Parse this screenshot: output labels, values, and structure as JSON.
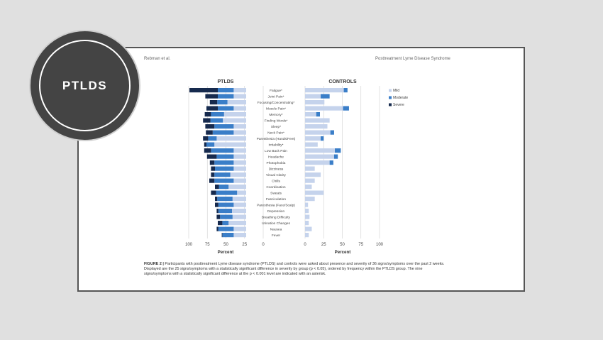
{
  "badge": {
    "label": "PTLDS"
  },
  "header": {
    "left": "Rebman et al.",
    "right": "Posttreatment Lyme Disease Syndrome"
  },
  "caption": {
    "figure_label": "FIGURE 2 |",
    "text": " Participants with posttreatment Lyme disease syndrome (PTLDS) and controls were asked about presence and severity of 36 signs/symptoms over the past 2 weeks. Displayed are the 25 signs/symptoms with a statistically significant difference in severity by group (p < 0.05), ordered by frequency within the PTLDS group. The nine signs/symptoms with a statistically significant difference at the p < 0.001 level are indicated with an asterisk."
  },
  "colors": {
    "mild": "#c5d3ec",
    "moderate": "#3a7ec8",
    "severe": "#162a4e"
  },
  "chart_data": [
    {
      "type": "bar",
      "title": "PTLDS",
      "xlabel": "Percent",
      "xlim": [
        0,
        100
      ],
      "x_reversed": true,
      "ticks": [
        100,
        75,
        50,
        25,
        0
      ],
      "categories": [
        "Fatigue*",
        "Joint Pain*",
        "Focusing/Concentrating*",
        "Muscle Pain*",
        "Memory*",
        "Finding Words*",
        "Sleep*",
        "Neck Pain*",
        "Paresthesia (Hands/Feet)",
        "Irritability*",
        "Low Back Pain",
        "Headache",
        "Photophobia",
        "Dizziness",
        "Visual Clarity",
        "Chills",
        "Coordination",
        "Sweats",
        "Fasciculation",
        "Paresthesia (Face/Scalp)",
        "Depression",
        "Breathing Difficulty",
        "Urination Changes",
        "Nausea",
        "Fever"
      ],
      "series": [
        {
          "name": "Mild",
          "values": [
            22,
            22,
            33,
            22,
            39,
            41,
            22,
            22,
            52,
            56,
            22,
            22,
            22,
            22,
            28,
            22,
            31,
            16,
            24,
            22,
            25,
            24,
            31,
            22,
            22
          ]
        },
        {
          "name": "Moderate",
          "values": [
            28,
            28,
            18,
            28,
            23,
            22,
            34,
            37,
            15,
            14,
            40,
            30,
            34,
            33,
            28,
            34,
            17,
            37,
            27,
            27,
            24,
            22,
            11,
            27,
            20
          ]
        },
        {
          "name": "Severe",
          "values": [
            50,
            22,
            13,
            20,
            11,
            13,
            16,
            12,
            9,
            4,
            12,
            17,
            8,
            7,
            6,
            9,
            7,
            9,
            4,
            6,
            3,
            6,
            8,
            3,
            1
          ]
        }
      ],
      "legend": [
        "Mild",
        "Moderate",
        "Severe"
      ],
      "legend_position": "right"
    },
    {
      "type": "bar",
      "title": "CONTROLS",
      "xlabel": "Percent",
      "xlim": [
        0,
        100
      ],
      "ticks": [
        0,
        25,
        50,
        75,
        100
      ],
      "categories": [
        "Fatigue*",
        "Joint Pain*",
        "Focusing/Concentrating*",
        "Muscle Pain*",
        "Memory*",
        "Finding Words*",
        "Sleep*",
        "Neck Pain*",
        "Paresthesia (Hands/Feet)",
        "Irritability*",
        "Low Back Pain",
        "Headache",
        "Photophobia",
        "Dizziness",
        "Visual Clarity",
        "Chills",
        "Coordination",
        "Sweats",
        "Fasciculation",
        "Paresthesia (Face/Scalp)",
        "Depression",
        "Breathing Difficulty",
        "Urination Changes",
        "Nausea",
        "Fever"
      ],
      "series": [
        {
          "name": "Mild",
          "values": [
            52,
            21,
            26,
            51,
            15,
            33,
            30,
            34,
            21,
            17,
            40,
            39,
            33,
            13,
            21,
            13,
            9,
            25,
            13,
            4,
            5,
            6,
            5,
            9,
            5
          ]
        },
        {
          "name": "Moderate",
          "values": [
            5,
            12,
            0,
            8,
            5,
            0,
            0,
            5,
            4,
            0,
            8,
            5,
            5,
            0,
            0,
            0,
            0,
            0,
            0,
            0,
            0,
            0,
            0,
            0,
            0
          ]
        },
        {
          "name": "Severe",
          "values": [
            0,
            0,
            0,
            0,
            0,
            0,
            0,
            0,
            0,
            0,
            0,
            0,
            0,
            0,
            0,
            0,
            0,
            0,
            0,
            0,
            0,
            0,
            0,
            0,
            0
          ]
        }
      ]
    }
  ]
}
